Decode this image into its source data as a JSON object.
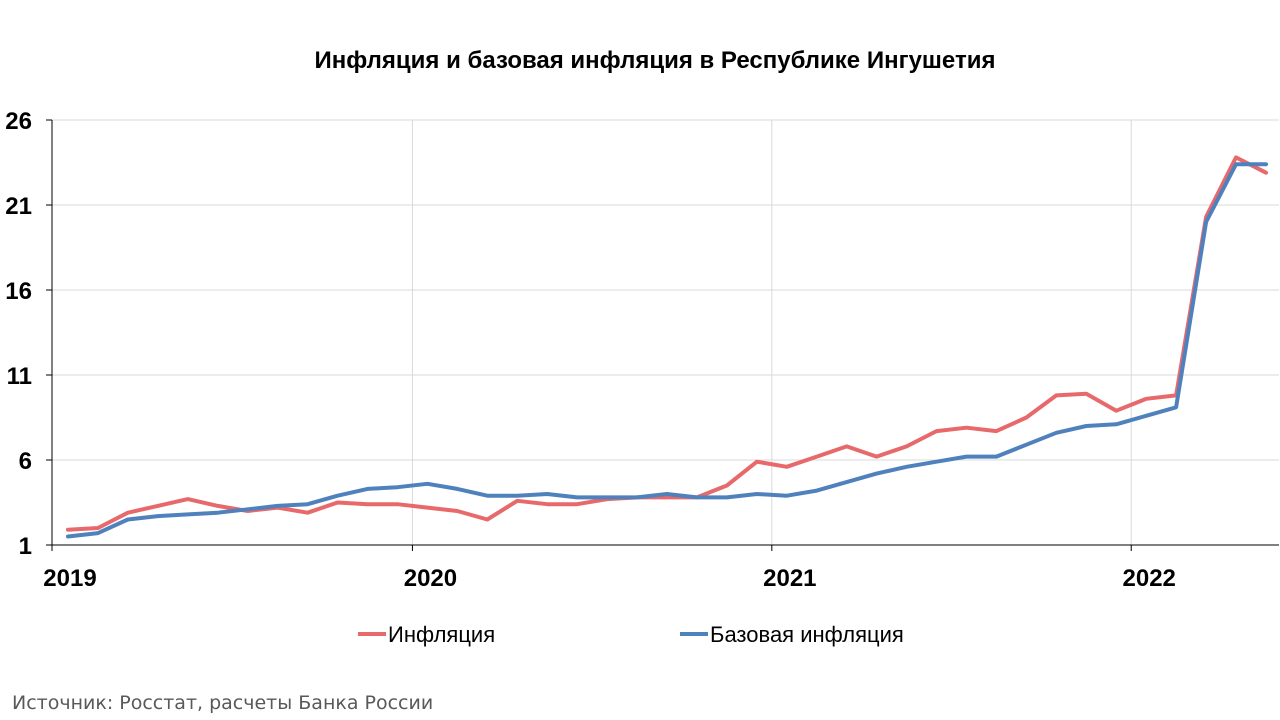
{
  "chart_data": {
    "type": "line",
    "title": "Инфляция и базовая инфляция в Республике Ингушетия",
    "xlabel": "",
    "ylabel": "",
    "ylim": [
      1,
      26
    ],
    "yticks": [
      "1",
      "6",
      "11",
      "16",
      "21",
      "26"
    ],
    "xticks": [
      "2019",
      "2020",
      "2021",
      "2022"
    ],
    "grid": true,
    "legend_position": "bottom",
    "x": [
      "2019-01",
      "2019-02",
      "2019-03",
      "2019-04",
      "2019-05",
      "2019-06",
      "2019-07",
      "2019-08",
      "2019-09",
      "2019-10",
      "2019-11",
      "2019-12",
      "2020-01",
      "2020-02",
      "2020-03",
      "2020-04",
      "2020-05",
      "2020-06",
      "2020-07",
      "2020-08",
      "2020-09",
      "2020-10",
      "2020-11",
      "2020-12",
      "2021-01",
      "2021-02",
      "2021-03",
      "2021-04",
      "2021-05",
      "2021-06",
      "2021-07",
      "2021-08",
      "2021-09",
      "2021-10",
      "2021-11",
      "2021-12",
      "2022-01",
      "2022-02",
      "2022-03",
      "2022-04",
      "2022-05"
    ],
    "series": [
      {
        "name": "Инфляция",
        "color": "#E8696B",
        "values": [
          1.9,
          2.0,
          2.9,
          3.3,
          3.7,
          3.3,
          3.0,
          3.2,
          2.9,
          3.5,
          3.4,
          3.4,
          3.2,
          3.0,
          2.5,
          3.6,
          3.4,
          3.4,
          3.7,
          3.8,
          3.8,
          3.8,
          4.5,
          5.9,
          5.6,
          6.2,
          6.8,
          6.2,
          6.8,
          7.7,
          7.9,
          7.7,
          8.5,
          9.8,
          9.9,
          8.9,
          9.6,
          9.8,
          20.3,
          23.8,
          22.9
        ]
      },
      {
        "name": "Базовая инфляция",
        "color": "#4F81BD",
        "values": [
          1.5,
          1.7,
          2.5,
          2.7,
          2.8,
          2.9,
          3.1,
          3.3,
          3.4,
          3.9,
          4.3,
          4.4,
          4.6,
          4.3,
          3.9,
          3.9,
          4.0,
          3.8,
          3.8,
          3.8,
          4.0,
          3.8,
          3.8,
          4.0,
          3.9,
          4.2,
          4.7,
          5.2,
          5.6,
          5.9,
          6.2,
          6.2,
          6.9,
          7.6,
          8.0,
          8.1,
          8.6,
          9.1,
          20.0,
          23.4,
          23.4
        ]
      }
    ]
  },
  "source": "Источник: Росстат, расчеты Банка России"
}
